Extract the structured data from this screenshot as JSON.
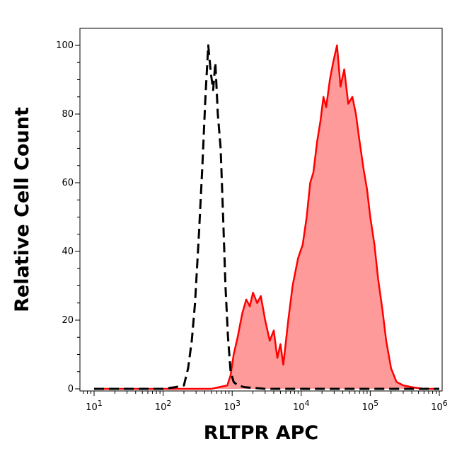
{
  "chart_data": {
    "type": "area",
    "xlabel": "RLTPR APC",
    "ylabel": "Relative Cell Count",
    "x_scale": "log",
    "xlim": [
      10,
      1000000
    ],
    "ylim": [
      0,
      100
    ],
    "x_ticks": [
      {
        "base": "10",
        "exp": "1",
        "value": 10
      },
      {
        "base": "10",
        "exp": "2",
        "value": 100
      },
      {
        "base": "10",
        "exp": "3",
        "value": 1000
      },
      {
        "base": "10",
        "exp": "4",
        "value": 10000
      },
      {
        "base": "10",
        "exp": "5",
        "value": 100000
      },
      {
        "base": "10",
        "exp": "6",
        "value": 1000000
      }
    ],
    "y_ticks": [
      "0",
      "20",
      "40",
      "60",
      "80",
      "100"
    ],
    "grid": false,
    "series": [
      {
        "style": "dashed",
        "fill": "none",
        "color": "#000000",
        "points": [
          [
            10,
            0
          ],
          [
            100,
            0
          ],
          [
            150,
            0.5
          ],
          [
            200,
            1
          ],
          [
            230,
            6
          ],
          [
            260,
            14
          ],
          [
            290,
            25
          ],
          [
            330,
            45
          ],
          [
            370,
            65
          ],
          [
            410,
            85
          ],
          [
            450,
            100
          ],
          [
            490,
            92
          ],
          [
            530,
            87
          ],
          [
            570,
            95
          ],
          [
            620,
            80
          ],
          [
            680,
            70
          ],
          [
            740,
            50
          ],
          [
            800,
            30
          ],
          [
            870,
            15
          ],
          [
            950,
            5
          ],
          [
            1050,
            2
          ],
          [
            1200,
            1
          ],
          [
            1500,
            0.5
          ],
          [
            3000,
            0
          ],
          [
            1000000,
            0
          ]
        ]
      },
      {
        "style": "solid",
        "fill": "#ff9a9a",
        "color": "#ff0000",
        "points": [
          [
            10,
            0
          ],
          [
            500,
            0
          ],
          [
            850,
            1
          ],
          [
            950,
            4
          ],
          [
            1050,
            10
          ],
          [
            1200,
            15
          ],
          [
            1400,
            22
          ],
          [
            1600,
            26
          ],
          [
            1800,
            24
          ],
          [
            2000,
            28
          ],
          [
            2300,
            25
          ],
          [
            2600,
            27
          ],
          [
            3000,
            20
          ],
          [
            3500,
            14
          ],
          [
            4000,
            17
          ],
          [
            4500,
            9
          ],
          [
            5000,
            13
          ],
          [
            5500,
            7
          ],
          [
            6500,
            20
          ],
          [
            7500,
            30
          ],
          [
            9000,
            38
          ],
          [
            10500,
            42
          ],
          [
            12000,
            50
          ],
          [
            13500,
            60
          ],
          [
            15000,
            63
          ],
          [
            17000,
            72
          ],
          [
            19000,
            78
          ],
          [
            21000,
            85
          ],
          [
            23000,
            82
          ],
          [
            26000,
            90
          ],
          [
            29000,
            95
          ],
          [
            33000,
            100
          ],
          [
            37000,
            88
          ],
          [
            42000,
            93
          ],
          [
            48000,
            83
          ],
          [
            55000,
            85
          ],
          [
            62000,
            80
          ],
          [
            70000,
            72
          ],
          [
            80000,
            64
          ],
          [
            90000,
            58
          ],
          [
            100000,
            50
          ],
          [
            115000,
            42
          ],
          [
            130000,
            32
          ],
          [
            150000,
            23
          ],
          [
            170000,
            14
          ],
          [
            200000,
            6
          ],
          [
            240000,
            2
          ],
          [
            300000,
            1
          ],
          [
            400000,
            0.5
          ],
          [
            600000,
            0
          ],
          [
            1000000,
            0
          ]
        ]
      }
    ]
  }
}
